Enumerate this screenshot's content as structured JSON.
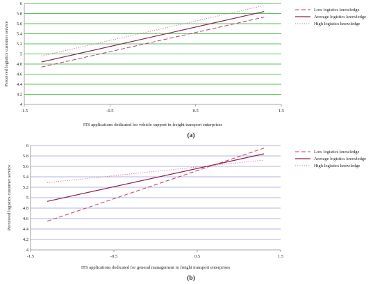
{
  "colors": {
    "grid_a": "#22aa22",
    "grid_b": "#9a9ad0",
    "axis": "#888888",
    "low": "#b04070",
    "average": "#8a2050",
    "high": "#d070a0"
  },
  "chart_data": [
    {
      "type": "line",
      "panel_label": "(a)",
      "title": "",
      "xlabel": "ITS applications dedicated for vehicle support in freight transport enterprises",
      "ylabel": "Perceived logistics customer service",
      "xlim": [
        -1.5,
        1.5
      ],
      "ylim": [
        4,
        6
      ],
      "xticks": [
        "-1.5",
        "-0.5",
        "0.5",
        "1.5"
      ],
      "yticks": [
        "4",
        "4.2",
        "4.4",
        "4.6",
        "4.8",
        "5",
        "5.2",
        "5.4",
        "5.6",
        "5.8",
        "6"
      ],
      "grid": "horizontal",
      "legend_position": "right",
      "series": [
        {
          "name": "Low logistics knowledge",
          "style": "dashed",
          "color_key": "low",
          "x": [
            -1.3,
            1.3
          ],
          "y": [
            4.74,
            5.73
          ]
        },
        {
          "name": "Average logistics knowledge",
          "style": "solid",
          "color_key": "average",
          "x": [
            -1.3,
            1.3
          ],
          "y": [
            4.84,
            5.84
          ]
        },
        {
          "name": "High logistics knowledge",
          "style": "dotted",
          "color_key": "high",
          "x": [
            -1.3,
            1.3
          ],
          "y": [
            4.96,
            5.96
          ]
        }
      ]
    },
    {
      "type": "line",
      "panel_label": "(b)",
      "title": "",
      "xlabel": "ITS applications dedicated for general management  in freight transport enterprises",
      "ylabel": "Perceived logistics customer service",
      "xlim": [
        -1.5,
        1.5
      ],
      "ylim": [
        4,
        6
      ],
      "xticks": [
        "-1.5",
        "-0.5",
        "0.5",
        "1.5"
      ],
      "yticks": [
        "4",
        "4.2",
        "4.4",
        "4.6",
        "4.8",
        "5",
        "5.2",
        "5.4",
        "5.6",
        "5.8",
        "6"
      ],
      "grid": "horizontal",
      "legend_position": "right",
      "series": [
        {
          "name": "Low logistics knowledge",
          "style": "dashed",
          "color_key": "low",
          "x": [
            -1.3,
            1.3
          ],
          "y": [
            4.55,
            5.95
          ]
        },
        {
          "name": "Average logistics knowledge",
          "style": "solid",
          "color_key": "average",
          "x": [
            -1.3,
            1.3
          ],
          "y": [
            4.93,
            5.84
          ]
        },
        {
          "name": "High logistics knowledge",
          "style": "dotted",
          "color_key": "high",
          "x": [
            -1.3,
            1.3
          ],
          "y": [
            5.29,
            5.72
          ]
        }
      ]
    }
  ]
}
